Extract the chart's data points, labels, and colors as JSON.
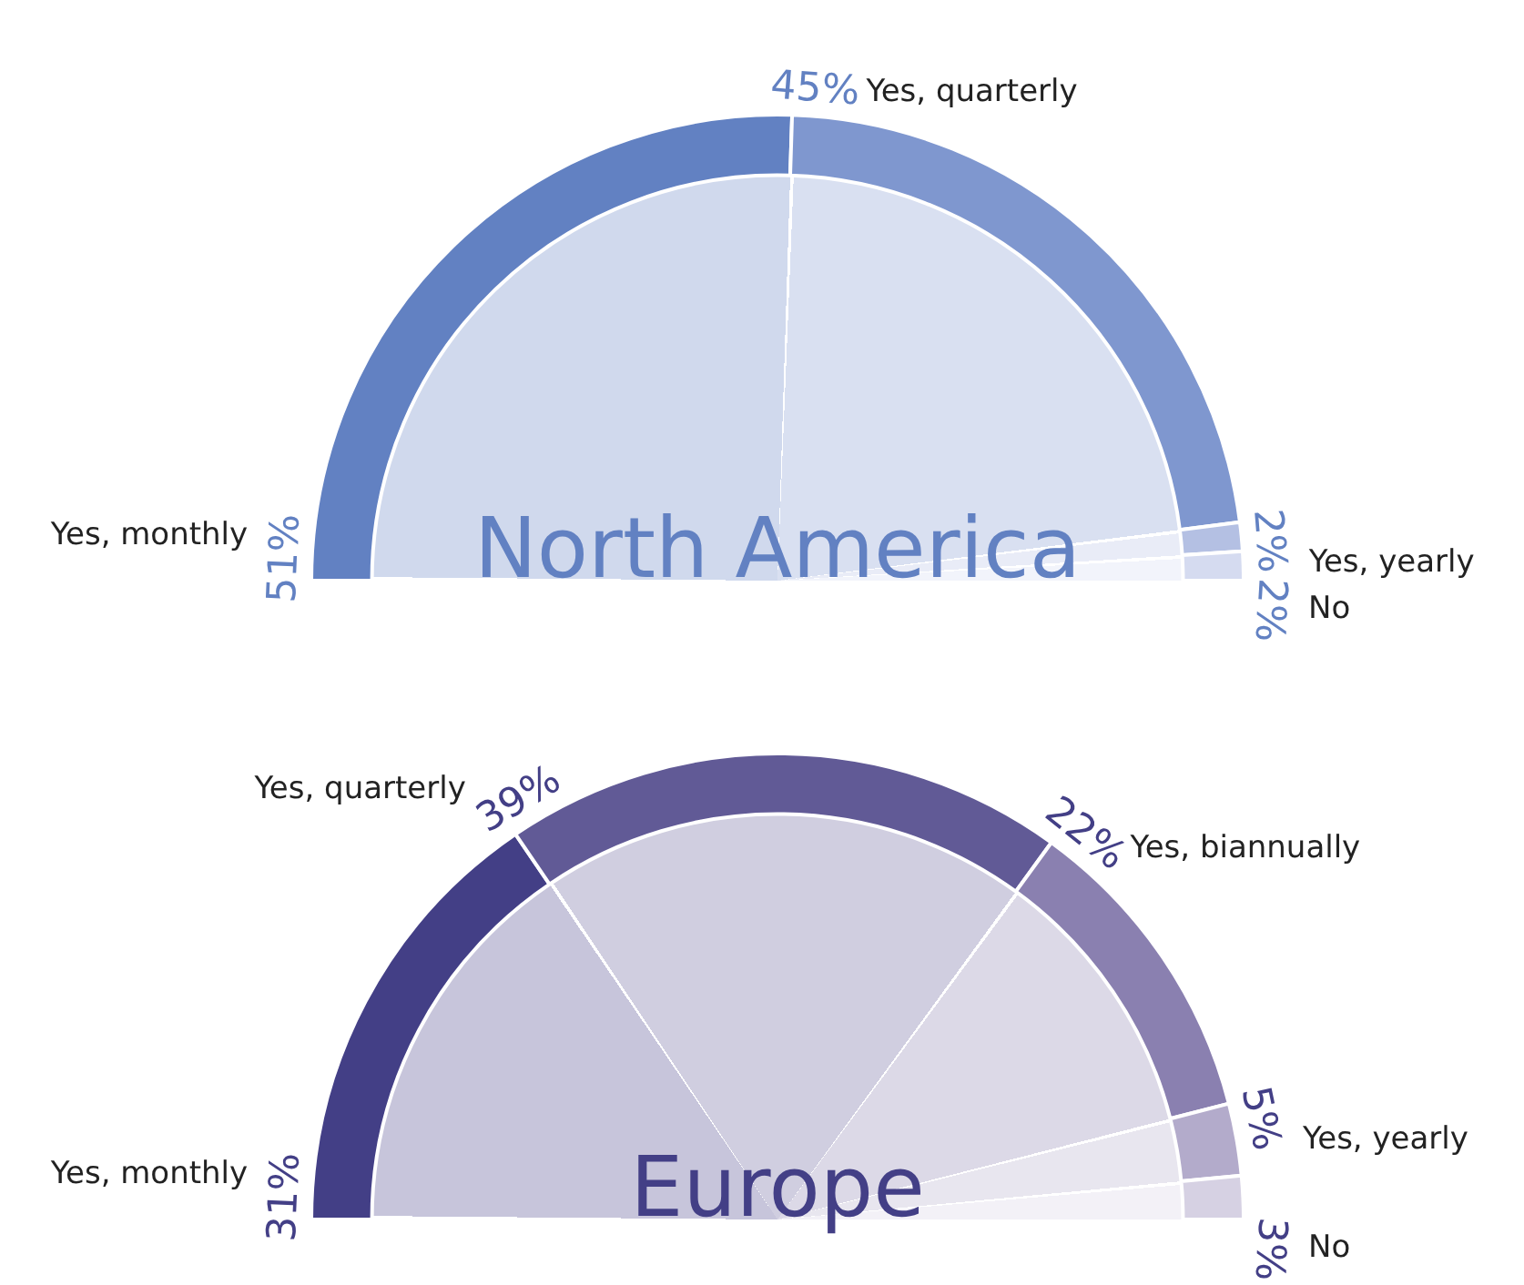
{
  "chart_data": [
    {
      "type": "donut",
      "title": "North America",
      "categories": [
        "Yes, monthly",
        "Yes, quarterly",
        "Yes, yearly",
        "No"
      ],
      "values": [
        51,
        45,
        2,
        2
      ],
      "value_labels": [
        "51%",
        "45%",
        "2%",
        "2%"
      ],
      "colors": [
        "#6281c2",
        "#7f97cf",
        "#b4c0e3",
        "#d5dbf0"
      ]
    },
    {
      "type": "donut",
      "title": "Europe",
      "categories": [
        "Yes, monthly",
        "Yes, quarterly",
        "Yes, biannually",
        "Yes, yearly",
        "No"
      ],
      "values": [
        31,
        39,
        22,
        5,
        3
      ],
      "value_labels": [
        "31%",
        "39%",
        "22%",
        "5%",
        "3%"
      ],
      "colors": [
        "#433f86",
        "#615a96",
        "#8a80b0",
        "#b3abcb",
        "#d6d1e3"
      ]
    }
  ]
}
